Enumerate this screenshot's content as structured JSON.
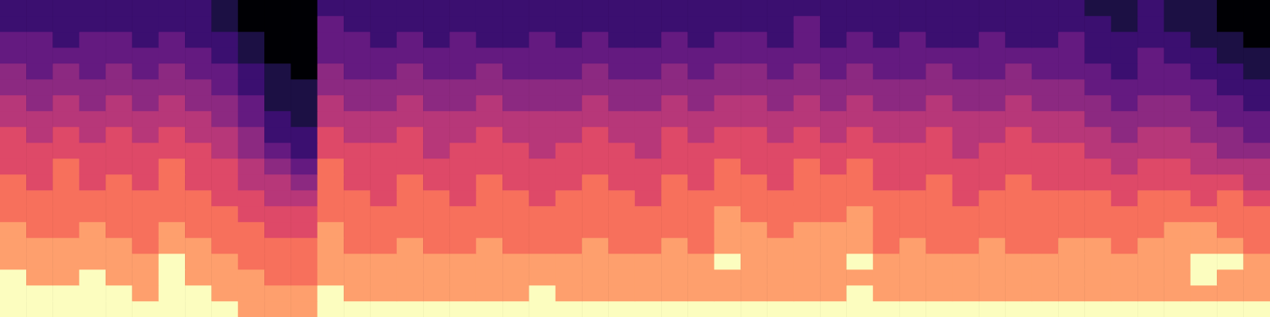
{
  "chart_data": {
    "type": "heatmap",
    "tick_labels": false,
    "grid": false,
    "color_range": [
      0,
      9
    ],
    "colors": [
      "#000004",
      "#1c1044",
      "#3b0f70",
      "#641a80",
      "#8c2981",
      "#b73779",
      "#de4968",
      "#f7705c",
      "#fe9f6d",
      "#fcfdbf"
    ],
    "cells": [
      [
        9,
        9,
        9,
        9,
        9,
        9,
        9,
        9,
        9,
        8,
        8,
        8,
        9,
        9,
        9,
        9,
        9,
        9,
        9,
        9,
        9,
        9,
        9,
        9,
        9,
        9,
        9,
        9,
        9,
        9,
        9,
        9,
        9,
        9,
        9,
        9,
        9,
        9,
        9,
        9,
        9,
        9,
        9,
        9,
        9,
        9,
        9,
        9
      ],
      [
        9,
        9,
        9,
        9,
        9,
        8,
        9,
        9,
        8,
        8,
        8,
        8,
        9,
        8,
        8,
        8,
        8,
        8,
        8,
        8,
        9,
        8,
        8,
        8,
        8,
        8,
        8,
        8,
        8,
        8,
        8,
        8,
        9,
        8,
        8,
        8,
        8,
        8,
        8,
        8,
        8,
        8,
        8,
        8,
        8,
        8,
        8,
        8
      ],
      [
        9,
        8,
        8,
        9,
        8,
        8,
        9,
        8,
        8,
        8,
        7,
        7,
        8,
        8,
        8,
        8,
        8,
        8,
        8,
        8,
        8,
        8,
        8,
        8,
        8,
        8,
        8,
        8,
        8,
        8,
        8,
        8,
        8,
        8,
        8,
        8,
        8,
        8,
        8,
        8,
        8,
        8,
        8,
        8,
        8,
        9,
        8,
        8
      ],
      [
        8,
        8,
        8,
        8,
        8,
        8,
        9,
        8,
        8,
        7,
        7,
        7,
        8,
        8,
        8,
        8,
        8,
        8,
        8,
        8,
        8,
        8,
        8,
        8,
        8,
        8,
        8,
        9,
        8,
        8,
        8,
        8,
        9,
        8,
        8,
        8,
        8,
        8,
        8,
        8,
        8,
        8,
        8,
        8,
        8,
        9,
        9,
        8
      ],
      [
        8,
        8,
        8,
        8,
        8,
        7,
        8,
        8,
        7,
        7,
        7,
        7,
        8,
        7,
        7,
        8,
        7,
        7,
        8,
        7,
        7,
        7,
        8,
        7,
        7,
        8,
        7,
        8,
        8,
        8,
        8,
        8,
        8,
        7,
        8,
        7,
        7,
        8,
        7,
        7,
        8,
        8,
        7,
        8,
        8,
        8,
        8,
        7
      ],
      [
        8,
        7,
        7,
        8,
        7,
        7,
        8,
        7,
        7,
        7,
        6,
        6,
        8,
        7,
        7,
        7,
        7,
        7,
        7,
        7,
        7,
        7,
        7,
        7,
        7,
        7,
        7,
        8,
        8,
        7,
        8,
        8,
        8,
        7,
        7,
        7,
        7,
        7,
        7,
        7,
        7,
        7,
        7,
        7,
        8,
        8,
        7,
        7
      ],
      [
        7,
        7,
        7,
        7,
        7,
        7,
        7,
        7,
        7,
        6,
        6,
        6,
        7,
        7,
        7,
        7,
        7,
        7,
        7,
        7,
        7,
        7,
        7,
        7,
        7,
        7,
        7,
        8,
        7,
        7,
        7,
        7,
        8,
        7,
        7,
        7,
        7,
        7,
        7,
        7,
        7,
        7,
        7,
        7,
        7,
        7,
        7,
        7
      ],
      [
        7,
        7,
        7,
        7,
        7,
        7,
        7,
        7,
        6,
        6,
        5,
        5,
        7,
        7,
        6,
        7,
        7,
        6,
        7,
        7,
        6,
        7,
        7,
        7,
        6,
        7,
        7,
        7,
        7,
        7,
        7,
        7,
        7,
        7,
        7,
        7,
        6,
        7,
        7,
        7,
        7,
        7,
        6,
        7,
        7,
        6,
        7,
        6
      ],
      [
        7,
        6,
        7,
        6,
        7,
        6,
        7,
        6,
        6,
        5,
        5,
        4,
        7,
        6,
        6,
        7,
        6,
        6,
        7,
        6,
        6,
        6,
        7,
        6,
        6,
        7,
        6,
        7,
        7,
        6,
        7,
        7,
        7,
        6,
        6,
        7,
        6,
        6,
        7,
        6,
        6,
        6,
        6,
        6,
        6,
        6,
        6,
        5
      ],
      [
        6,
        6,
        7,
        6,
        6,
        6,
        7,
        6,
        6,
        5,
        4,
        3,
        7,
        6,
        6,
        6,
        6,
        6,
        6,
        6,
        6,
        6,
        6,
        6,
        6,
        6,
        6,
        7,
        6,
        6,
        7,
        6,
        7,
        6,
        6,
        6,
        6,
        6,
        6,
        6,
        6,
        6,
        5,
        6,
        6,
        5,
        5,
        5
      ],
      [
        6,
        6,
        6,
        6,
        6,
        6,
        6,
        6,
        5,
        4,
        3,
        2,
        6,
        6,
        6,
        6,
        5,
        6,
        6,
        6,
        5,
        6,
        6,
        6,
        5,
        6,
        6,
        6,
        6,
        6,
        6,
        6,
        6,
        6,
        6,
        6,
        5,
        6,
        6,
        6,
        6,
        5,
        5,
        5,
        5,
        5,
        4,
        4
      ],
      [
        6,
        5,
        6,
        5,
        6,
        5,
        6,
        5,
        5,
        4,
        2,
        2,
        6,
        5,
        5,
        6,
        5,
        5,
        6,
        5,
        5,
        5,
        6,
        5,
        5,
        6,
        5,
        6,
        6,
        5,
        6,
        5,
        6,
        5,
        5,
        6,
        5,
        5,
        6,
        5,
        5,
        5,
        4,
        5,
        5,
        4,
        4,
        3
      ],
      [
        5,
        5,
        5,
        5,
        5,
        5,
        5,
        5,
        4,
        3,
        2,
        1,
        5,
        5,
        5,
        5,
        5,
        5,
        5,
        5,
        5,
        5,
        5,
        5,
        5,
        5,
        5,
        5,
        5,
        5,
        5,
        5,
        5,
        5,
        5,
        5,
        5,
        5,
        5,
        5,
        5,
        4,
        4,
        4,
        4,
        4,
        3,
        3
      ],
      [
        5,
        4,
        5,
        4,
        5,
        4,
        5,
        4,
        4,
        3,
        1,
        1,
        5,
        4,
        4,
        5,
        4,
        4,
        5,
        4,
        4,
        4,
        5,
        4,
        4,
        5,
        4,
        5,
        5,
        4,
        5,
        4,
        5,
        4,
        4,
        5,
        4,
        4,
        5,
        4,
        4,
        4,
        3,
        4,
        4,
        3,
        3,
        2
      ],
      [
        4,
        4,
        4,
        4,
        4,
        4,
        4,
        4,
        3,
        2,
        1,
        1,
        4,
        4,
        4,
        4,
        4,
        4,
        4,
        4,
        4,
        4,
        4,
        4,
        4,
        4,
        4,
        4,
        4,
        4,
        4,
        4,
        4,
        4,
        4,
        4,
        4,
        4,
        4,
        4,
        4,
        3,
        3,
        3,
        3,
        3,
        2,
        2
      ],
      [
        4,
        3,
        4,
        3,
        4,
        3,
        4,
        3,
        3,
        2,
        1,
        0,
        4,
        3,
        3,
        4,
        3,
        3,
        4,
        3,
        3,
        3,
        4,
        3,
        3,
        4,
        3,
        4,
        4,
        3,
        4,
        3,
        4,
        3,
        3,
        4,
        3,
        3,
        4,
        3,
        3,
        3,
        2,
        3,
        3,
        2,
        2,
        1
      ],
      [
        3,
        3,
        3,
        3,
        3,
        3,
        3,
        3,
        2,
        1,
        0,
        0,
        3,
        3,
        3,
        3,
        3,
        3,
        3,
        3,
        3,
        3,
        3,
        3,
        3,
        3,
        3,
        3,
        3,
        3,
        3,
        3,
        3,
        3,
        3,
        3,
        3,
        3,
        3,
        3,
        3,
        2,
        2,
        3,
        2,
        2,
        1,
        1
      ],
      [
        3,
        3,
        2,
        3,
        3,
        2,
        3,
        2,
        2,
        1,
        0,
        0,
        3,
        3,
        2,
        3,
        2,
        3,
        2,
        2,
        3,
        2,
        3,
        2,
        2,
        3,
        2,
        3,
        3,
        2,
        3,
        2,
        3,
        2,
        3,
        2,
        2,
        3,
        2,
        2,
        3,
        2,
        2,
        2,
        2,
        1,
        1,
        0
      ],
      [
        2,
        2,
        2,
        2,
        2,
        2,
        2,
        2,
        1,
        0,
        0,
        0,
        3,
        2,
        2,
        2,
        2,
        2,
        2,
        2,
        2,
        2,
        2,
        2,
        2,
        2,
        2,
        2,
        2,
        2,
        3,
        2,
        2,
        2,
        2,
        2,
        2,
        2,
        2,
        2,
        2,
        2,
        1,
        2,
        1,
        1,
        0,
        0
      ],
      [
        2,
        2,
        2,
        2,
        2,
        2,
        2,
        2,
        1,
        0,
        0,
        0,
        2,
        2,
        2,
        2,
        2,
        2,
        2,
        2,
        2,
        2,
        2,
        2,
        2,
        2,
        2,
        2,
        2,
        2,
        2,
        2,
        2,
        2,
        2,
        2,
        2,
        2,
        2,
        2,
        2,
        1,
        1,
        2,
        1,
        1,
        0,
        0
      ]
    ]
  }
}
